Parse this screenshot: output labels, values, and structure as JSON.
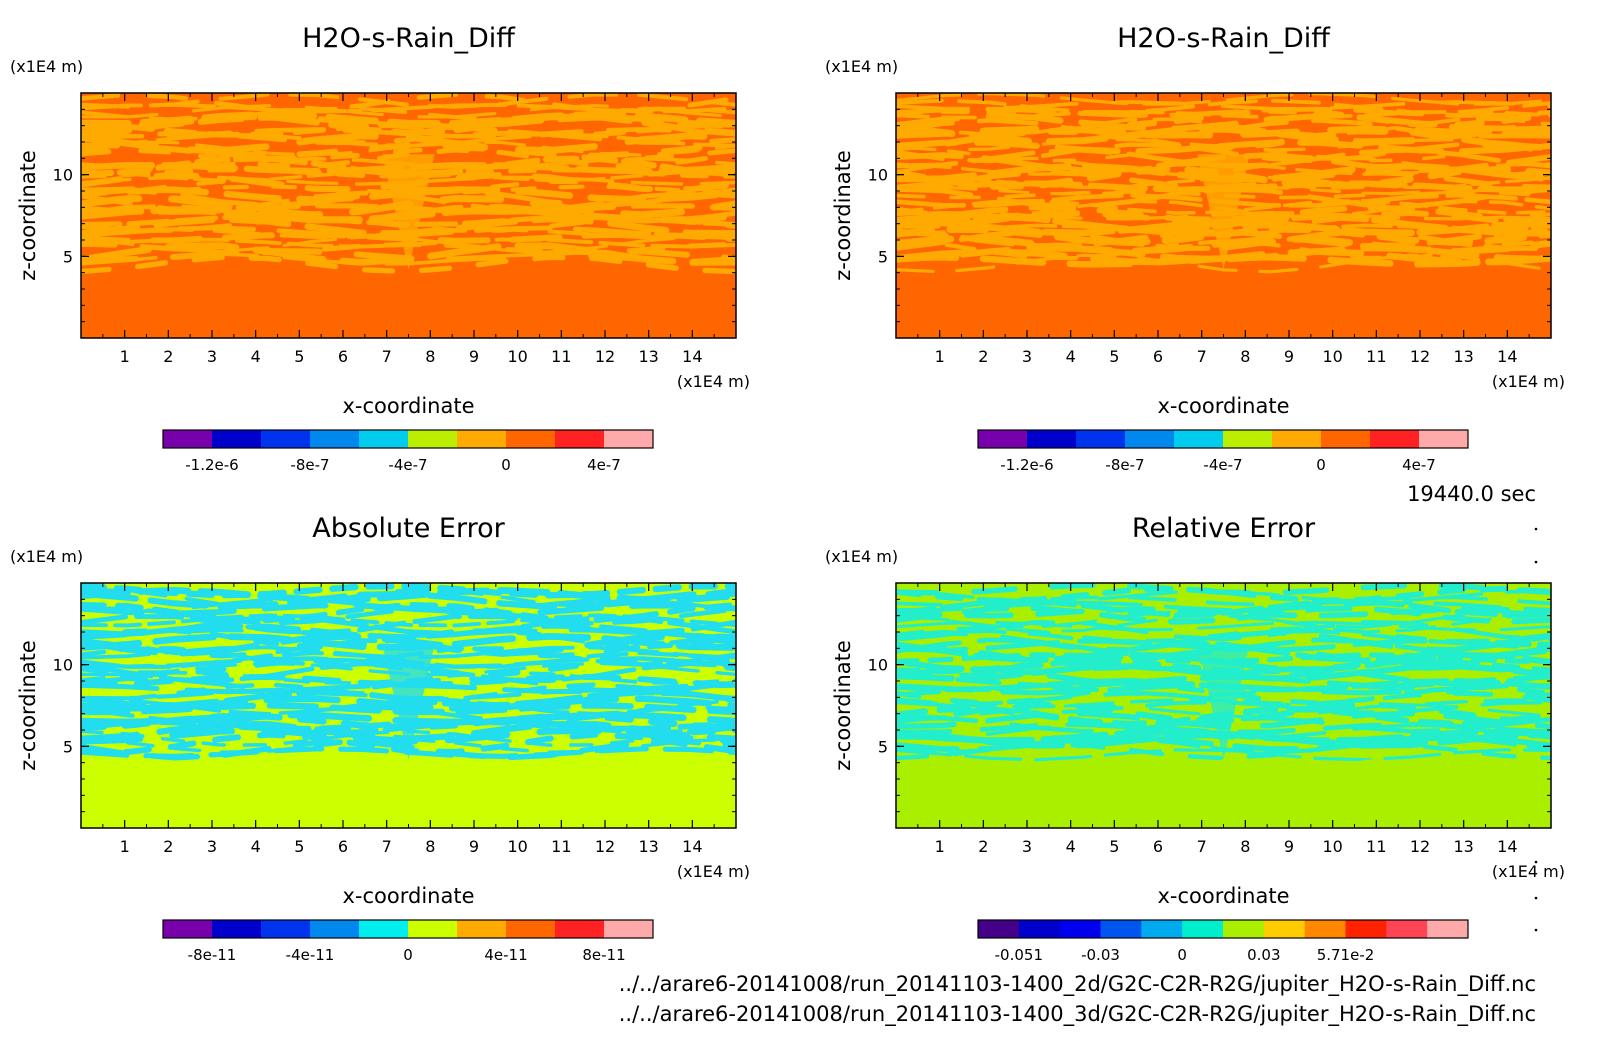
{
  "timestamp": "19440.0 sec",
  "footer": {
    "line1": "../../arare6-20141008/run_20141103-1400_2d/G2C-C2R-R2G/jupiter_H2O-s-Rain_Diff.nc",
    "line2": "../../arare6-20141008/run_20141103-1400_3d/G2C-C2R-R2G/jupiter_H2O-s-Rain_Diff.nc"
  },
  "chart_data": [
    {
      "type": "heatmap",
      "title": "H2O-s-Rain_Diff",
      "xlabel": "x-coordinate",
      "ylabel": "z-coordinate",
      "x_unit": "(x1E4 m)",
      "y_unit": "(x1E4 m)",
      "xlim": [
        0,
        15
      ],
      "ylim": [
        0,
        15
      ],
      "xticks": [
        "1",
        "2",
        "3",
        "4",
        "5",
        "6",
        "7",
        "8",
        "9",
        "10",
        "11",
        "12",
        "13",
        "14"
      ],
      "yticks": [
        "5",
        "10"
      ],
      "colorbar": {
        "colors": [
          "#7700aa",
          "#0000cc",
          "#0033ee",
          "#0088ee",
          "#00ccee",
          "#bbee00",
          "#ffaa00",
          "#ff6600",
          "#ff2222",
          "#ffaaaa"
        ],
        "labels": [
          "-1.2e-6",
          "-8e-7",
          "-4e-7",
          "0",
          "4e-7"
        ]
      },
      "field_colors": [
        "#ff6600",
        "#ffaa00"
      ]
    },
    {
      "type": "heatmap",
      "title": "H2O-s-Rain_Diff",
      "xlabel": "x-coordinate",
      "ylabel": "z-coordinate",
      "x_unit": "(x1E4 m)",
      "y_unit": "(x1E4 m)",
      "xlim": [
        0,
        15
      ],
      "ylim": [
        0,
        15
      ],
      "xticks": [
        "1",
        "2",
        "3",
        "4",
        "5",
        "6",
        "7",
        "8",
        "9",
        "10",
        "11",
        "12",
        "13",
        "14"
      ],
      "yticks": [
        "5",
        "10"
      ],
      "colorbar": {
        "colors": [
          "#7700aa",
          "#0000cc",
          "#0033ee",
          "#0088ee",
          "#00ccee",
          "#bbee00",
          "#ffaa00",
          "#ff6600",
          "#ff2222",
          "#ffaaaa"
        ],
        "labels": [
          "-1.2e-6",
          "-8e-7",
          "-4e-7",
          "0",
          "4e-7"
        ]
      },
      "field_colors": [
        "#ff6600",
        "#ffaa00"
      ]
    },
    {
      "type": "heatmap",
      "title": "Absolute Error",
      "xlabel": "x-coordinate",
      "ylabel": "z-coordinate",
      "x_unit": "(x1E4 m)",
      "y_unit": "(x1E4 m)",
      "xlim": [
        0,
        15
      ],
      "ylim": [
        0,
        15
      ],
      "xticks": [
        "1",
        "2",
        "3",
        "4",
        "5",
        "6",
        "7",
        "8",
        "9",
        "10",
        "11",
        "12",
        "13",
        "14"
      ],
      "yticks": [
        "5",
        "10"
      ],
      "colorbar": {
        "colors": [
          "#7700aa",
          "#0000cc",
          "#0033ee",
          "#0088ee",
          "#00eeee",
          "#ccff00",
          "#ffaa00",
          "#ff6600",
          "#ff2222",
          "#ffaaaa"
        ],
        "labels": [
          "-8e-11",
          "-4e-11",
          "0",
          "4e-11",
          "8e-11"
        ]
      },
      "field_colors": [
        "#ccff00",
        "#22ddee"
      ]
    },
    {
      "type": "heatmap",
      "title": "Relative Error",
      "xlabel": "x-coordinate",
      "ylabel": "z-coordinate",
      "x_unit": "(x1E4 m)",
      "y_unit": "(x1E4 m)",
      "xlim": [
        0,
        15
      ],
      "ylim": [
        0,
        15
      ],
      "xticks": [
        "1",
        "2",
        "3",
        "4",
        "5",
        "6",
        "7",
        "8",
        "9",
        "10",
        "11",
        "12",
        "13",
        "14"
      ],
      "yticks": [
        "5",
        "10"
      ],
      "colorbar": {
        "colors": [
          "#440088",
          "#0000cc",
          "#0000ee",
          "#0055ee",
          "#00aaee",
          "#00eecc",
          "#aaee00",
          "#ffcc00",
          "#ff8800",
          "#ff2200",
          "#ff4455",
          "#ffaaaa"
        ],
        "labels": [
          "-0.051",
          "-0.03",
          "0",
          "0.03",
          "5.71e-2"
        ]
      },
      "field_colors": [
        "#aaee00",
        "#22eecc"
      ]
    }
  ]
}
